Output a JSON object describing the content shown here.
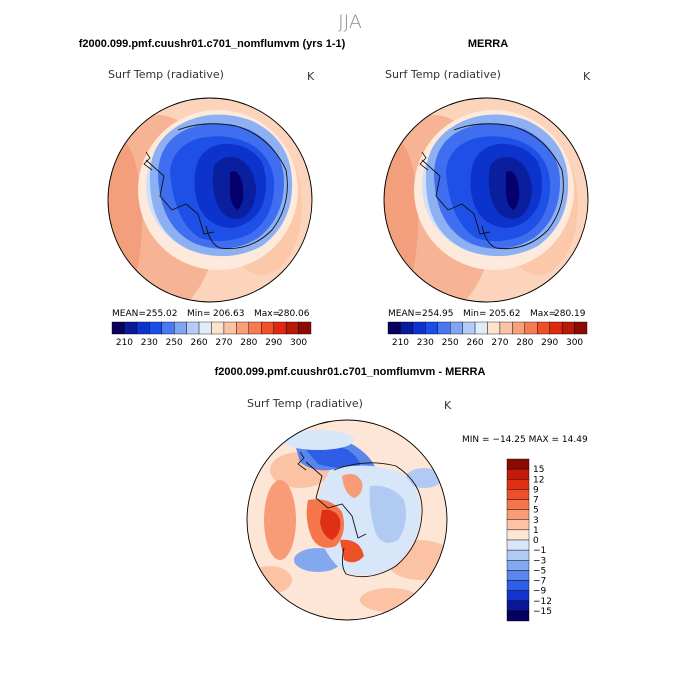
{
  "figure": {
    "season_title": "JJA"
  },
  "panels": {
    "model": {
      "header": "f2000.099.pmf.cuushr01.c701_nomflumvm (yrs 1-1)",
      "variable": "Surf Temp (radiative)",
      "units": "K",
      "stats": {
        "mean_label": "MEAN=",
        "mean": "255.02",
        "min_label": "Min=",
        "min": "206.63",
        "max_label": "Max=",
        "max": "280.06"
      }
    },
    "obs": {
      "header": "MERRA",
      "variable": "Surf Temp (radiative)",
      "units": "K",
      "stats": {
        "mean_label": "MEAN=",
        "mean": "254.95",
        "min_label": "Min=",
        "min": "205.62",
        "max_label": "Max=",
        "max": "280.19"
      }
    },
    "diff": {
      "header": "f2000.099.pmf.cuushr01.c701_nomflumvm - MERRA",
      "variable": "Surf Temp (radiative)",
      "units": "K",
      "minmax_text": "MIN = −14.25  MAX =  14.49"
    }
  },
  "chart_data": [
    {
      "type": "heatmap",
      "title": "f2000.099.pmf.cuushr01.c701_nomflumvm (yrs 1-1)",
      "subtitle": "Surf Temp (radiative)",
      "units": "K",
      "projection": "south polar stereographic",
      "colorbar": {
        "orientation": "horizontal",
        "tick_labels": [
          "210",
          "230",
          "250",
          "260",
          "270",
          "280",
          "290",
          "300"
        ],
        "colors": [
          "#08005a",
          "#0a1a9a",
          "#0c33d0",
          "#1a4ee8",
          "#4a78f0",
          "#7ea4f2",
          "#b4ccf5",
          "#e0ecfa",
          "#fde2cc",
          "#fbc3a6",
          "#f8a07c",
          "#f57b52",
          "#ee5028",
          "#dd2a10",
          "#b81a08",
          "#8a0c00"
        ]
      },
      "stats": {
        "mean": 255.02,
        "min": 206.63,
        "max": 280.06
      }
    },
    {
      "type": "heatmap",
      "title": "MERRA",
      "subtitle": "Surf Temp (radiative)",
      "units": "K",
      "projection": "south polar stereographic",
      "colorbar": {
        "orientation": "horizontal",
        "tick_labels": [
          "210",
          "230",
          "250",
          "260",
          "270",
          "280",
          "290",
          "300"
        ],
        "colors": [
          "#08005a",
          "#0a1a9a",
          "#0c33d0",
          "#1a4ee8",
          "#4a78f0",
          "#7ea4f2",
          "#b4ccf5",
          "#e0ecfa",
          "#fde2cc",
          "#fbc3a6",
          "#f8a07c",
          "#f57b52",
          "#ee5028",
          "#dd2a10",
          "#b81a08",
          "#8a0c00"
        ]
      },
      "stats": {
        "mean": 254.95,
        "min": 205.62,
        "max": 280.19
      }
    },
    {
      "type": "heatmap",
      "title": "f2000.099.pmf.cuushr01.c701_nomflumvm - MERRA",
      "subtitle": "Surf Temp (radiative)",
      "units": "K",
      "projection": "south polar stereographic",
      "colorbar": {
        "orientation": "vertical",
        "tick_labels": [
          "15",
          "12",
          "9",
          "7",
          "5",
          "3",
          "1",
          "0",
          "−1",
          "−3",
          "−5",
          "−7",
          "−9",
          "−12",
          "−15"
        ],
        "colors": [
          "#8a0c00",
          "#c41a08",
          "#e03014",
          "#ee5028",
          "#f4764a",
          "#f89c78",
          "#fbc2a4",
          "#fde6d6",
          "#d8e6fa",
          "#b0caf4",
          "#84a8f0",
          "#5a86ec",
          "#2f5ee6",
          "#1234cc",
          "#0a1896",
          "#040060"
        ]
      },
      "stats": {
        "min": -14.25,
        "max": 14.49
      }
    }
  ]
}
